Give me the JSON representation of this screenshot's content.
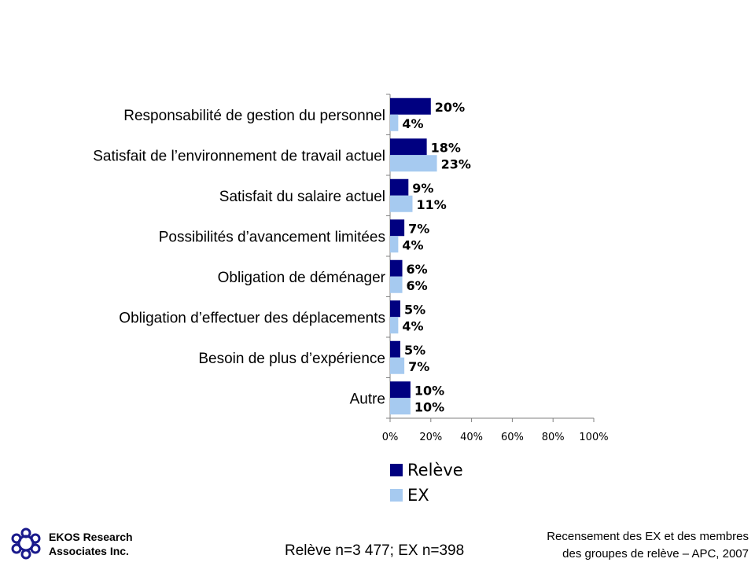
{
  "chart_data": {
    "type": "bar",
    "orientation": "horizontal",
    "categories": [
      "Responsabilité de gestion du personnel",
      "Satisfait de l’environnement de travail actuel",
      "Satisfait du salaire actuel",
      "Possibilités d’avancement limitées",
      "Obligation de déménager",
      "Obligation d’effectuer des déplacements",
      "Besoin de plus d’expérience",
      "Autre"
    ],
    "series": [
      {
        "name": "Relève",
        "color": "#000080",
        "values": [
          20,
          18,
          9,
          7,
          6,
          5,
          5,
          10
        ]
      },
      {
        "name": "EX",
        "color": "#a6caf0",
        "values": [
          4,
          23,
          11,
          4,
          6,
          4,
          7,
          10
        ]
      }
    ],
    "xlim": [
      0,
      100
    ],
    "xticks": [
      "0%",
      "20%",
      "40%",
      "60%",
      "80%",
      "100%"
    ],
    "value_suffix": "%",
    "legend_position": "bottom"
  },
  "footer": {
    "company_line1": "EKOS Research",
    "company_line2": "Associates Inc.",
    "sample": "Relève n=3 477; EX n=398",
    "source_line1": "Recensement des EX et des membres",
    "source_line2": "des groupes de relève – APC, 2007"
  }
}
